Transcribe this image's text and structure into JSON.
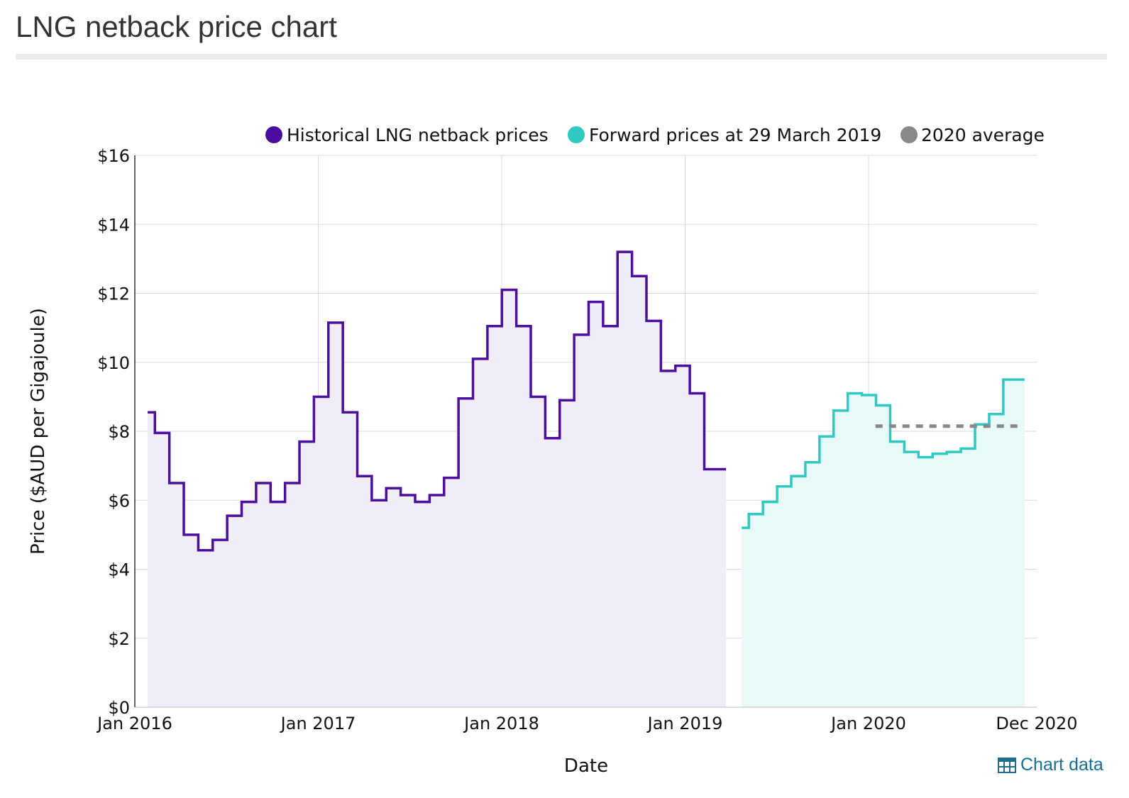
{
  "page": {
    "title": "LNG netback price chart",
    "chart_data_link": "Chart data",
    "chart_data_icon": "table-icon"
  },
  "chart_data": {
    "type": "line",
    "step": true,
    "xlabel": "Date",
    "ylabel": "Price ($AUD per Gigajoule)",
    "ylim": [
      0,
      16
    ],
    "y_ticks": [
      "$0",
      "$2",
      "$4",
      "$6",
      "$8",
      "$10",
      "$12",
      "$14",
      "$16"
    ],
    "x_ticks": [
      "Jan 2016",
      "Jan 2017",
      "Jan 2018",
      "Jan 2019",
      "Jan 2020",
      "Dec 2020"
    ],
    "grid": true,
    "legend_position": "top",
    "legend": [
      "Historical LNG netback prices",
      "Forward prices at 29 March 2019",
      "2020 average"
    ],
    "colors": {
      "historical": "#4b0fa0",
      "forward": "#2ec9c1",
      "average": "#888888",
      "hist_fill": "#f1edf6",
      "fwd_fill": "#e8faf8"
    },
    "series": [
      {
        "name": "Historical LNG netback prices",
        "start": "Jan 2016",
        "values": [
          8.55,
          7.95,
          6.5,
          5.0,
          4.55,
          4.85,
          5.55,
          5.95,
          6.5,
          5.95,
          6.5,
          7.7,
          9.0,
          11.15,
          8.55,
          6.7,
          6.0,
          6.35,
          6.15,
          5.95,
          6.15,
          6.65,
          8.95,
          10.1,
          11.05,
          12.1,
          11.05,
          9.0,
          7.8,
          8.9,
          10.8,
          11.75,
          11.05,
          13.2,
          12.5,
          11.2,
          9.75,
          9.9,
          9.1,
          6.9
        ]
      },
      {
        "name": "Forward prices at 29 March 2019",
        "start": "May 2019",
        "values": [
          5.2,
          5.6,
          5.95,
          6.4,
          6.7,
          7.1,
          7.85,
          8.6,
          9.1,
          9.05,
          8.75,
          7.7,
          7.4,
          7.25,
          7.35,
          7.4,
          7.5,
          8.2,
          8.5,
          9.5
        ]
      },
      {
        "name": "2020 average",
        "value": 8.15
      }
    ]
  }
}
